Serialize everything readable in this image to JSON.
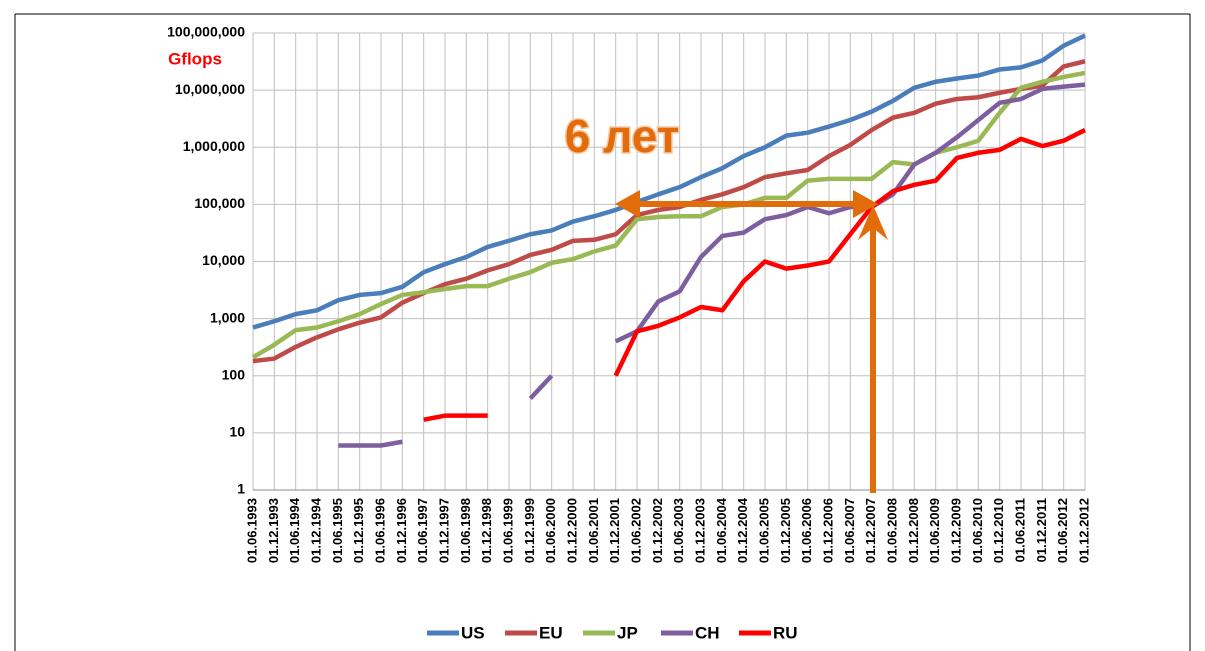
{
  "chart_data": {
    "type": "line",
    "annotations": [
      "Gflops",
      "6 лет"
    ],
    "log_scale": true,
    "grid": true,
    "legend": "bottom",
    "categories": [
      "01.06.1993",
      "01.12.1993",
      "01.06.1994",
      "01.12.1994",
      "01.06.1995",
      "01.12.1995",
      "01.06.1996",
      "01.12.1996",
      "01.06.1997",
      "01.12.1997",
      "01.06.1998",
      "01.12.1998",
      "01.06.1999",
      "01.12.1999",
      "01.06.2000",
      "01.12.2000",
      "01.06.2001",
      "01.12.2001",
      "01.06.2002",
      "01.12.2002",
      "01.06.2003",
      "01.12.2003",
      "01.06.2004",
      "01.12.2004",
      "01.06.2005",
      "01.12.2005",
      "01.06.2006",
      "01.12.2006",
      "01.06.2007",
      "01.12.2007",
      "01.06.2008",
      "01.12.2008",
      "01.06.2009",
      "01.12.2009",
      "01.06.2010",
      "01.12.2010",
      "01.06.2011",
      "01.12.2011",
      "01.06.2012",
      "01.12.2012"
    ],
    "ylim": [
      1,
      100000000
    ],
    "yticks": [
      1,
      10,
      100,
      {
        "value": 1000,
        "label": "1,000"
      },
      {
        "value": 10000,
        "label": "10,000"
      },
      {
        "value": 100000,
        "label": "100,000"
      },
      {
        "value": 1000000,
        "label": "1,000,000"
      },
      {
        "value": 10000000,
        "label": "10,000,000"
      },
      {
        "value": 100000000,
        "label": "100,000,000"
      }
    ],
    "series": [
      {
        "name": "US",
        "color": "#4a7ebb",
        "values": [
          700,
          900,
          1200,
          1400,
          2100,
          2600,
          2800,
          3600,
          6500,
          9000,
          12000,
          18000,
          23000,
          30000,
          35000,
          50000,
          62000,
          80000,
          110000,
          150000,
          200000,
          300000,
          430000,
          700000,
          1000000,
          1600000,
          1800000,
          2300000,
          3000000,
          4200000,
          6500000,
          11000000,
          14000000,
          16000000,
          18000000,
          23000000,
          25000000,
          33000000,
          60000000,
          90000000
        ]
      },
      {
        "name": "EU",
        "color": "#be4b48",
        "values": [
          180,
          200,
          320,
          470,
          650,
          850,
          1050,
          1900,
          2800,
          4000,
          5000,
          7000,
          9000,
          13000,
          16000,
          23000,
          24000,
          30000,
          65000,
          80000,
          90000,
          120000,
          150000,
          200000,
          300000,
          350000,
          400000,
          700000,
          1100000,
          2000000,
          3300000,
          4000000,
          5800000,
          7000000,
          7500000,
          9000000,
          10500000,
          12000000,
          26000000,
          32000000
        ]
      },
      {
        "name": "JP",
        "color": "#98b954",
        "values": [
          210,
          350,
          630,
          700,
          900,
          1200,
          1800,
          2600,
          2900,
          3300,
          3700,
          3700,
          5000,
          6500,
          9500,
          11000,
          15000,
          19000,
          55000,
          60000,
          62000,
          62000,
          90000,
          100000,
          130000,
          130000,
          260000,
          280000,
          280000,
          280000,
          550000,
          500000,
          800000,
          1000000,
          1300000,
          4000000,
          11000000,
          14000000,
          17000000,
          20000000
        ]
      },
      {
        "name": "CH",
        "color": "#7d5fa0",
        "values": [
          null,
          null,
          null,
          null,
          6,
          6,
          6,
          7,
          null,
          null,
          null,
          null,
          null,
          40,
          100,
          null,
          null,
          400,
          600,
          2000,
          3000,
          12000,
          28000,
          32000,
          55000,
          65000,
          90000,
          70000,
          90000,
          90000,
          150000,
          500000,
          800000,
          1500000,
          3000000,
          6000000,
          7000000,
          10500000,
          11500000,
          12500000
        ]
      },
      {
        "name": "RU",
        "color": "#ff0000",
        "values": [
          null,
          null,
          null,
          null,
          null,
          null,
          null,
          null,
          17,
          20,
          20,
          20,
          null,
          null,
          null,
          null,
          null,
          100,
          600,
          750,
          1050,
          1600,
          1400,
          4500,
          10000,
          7500,
          8500,
          10000,
          30000,
          90000,
          170000,
          220000,
          260000,
          650000,
          800000,
          900000,
          1400000,
          1050000,
          1300000,
          2000000
        ]
      }
    ]
  }
}
